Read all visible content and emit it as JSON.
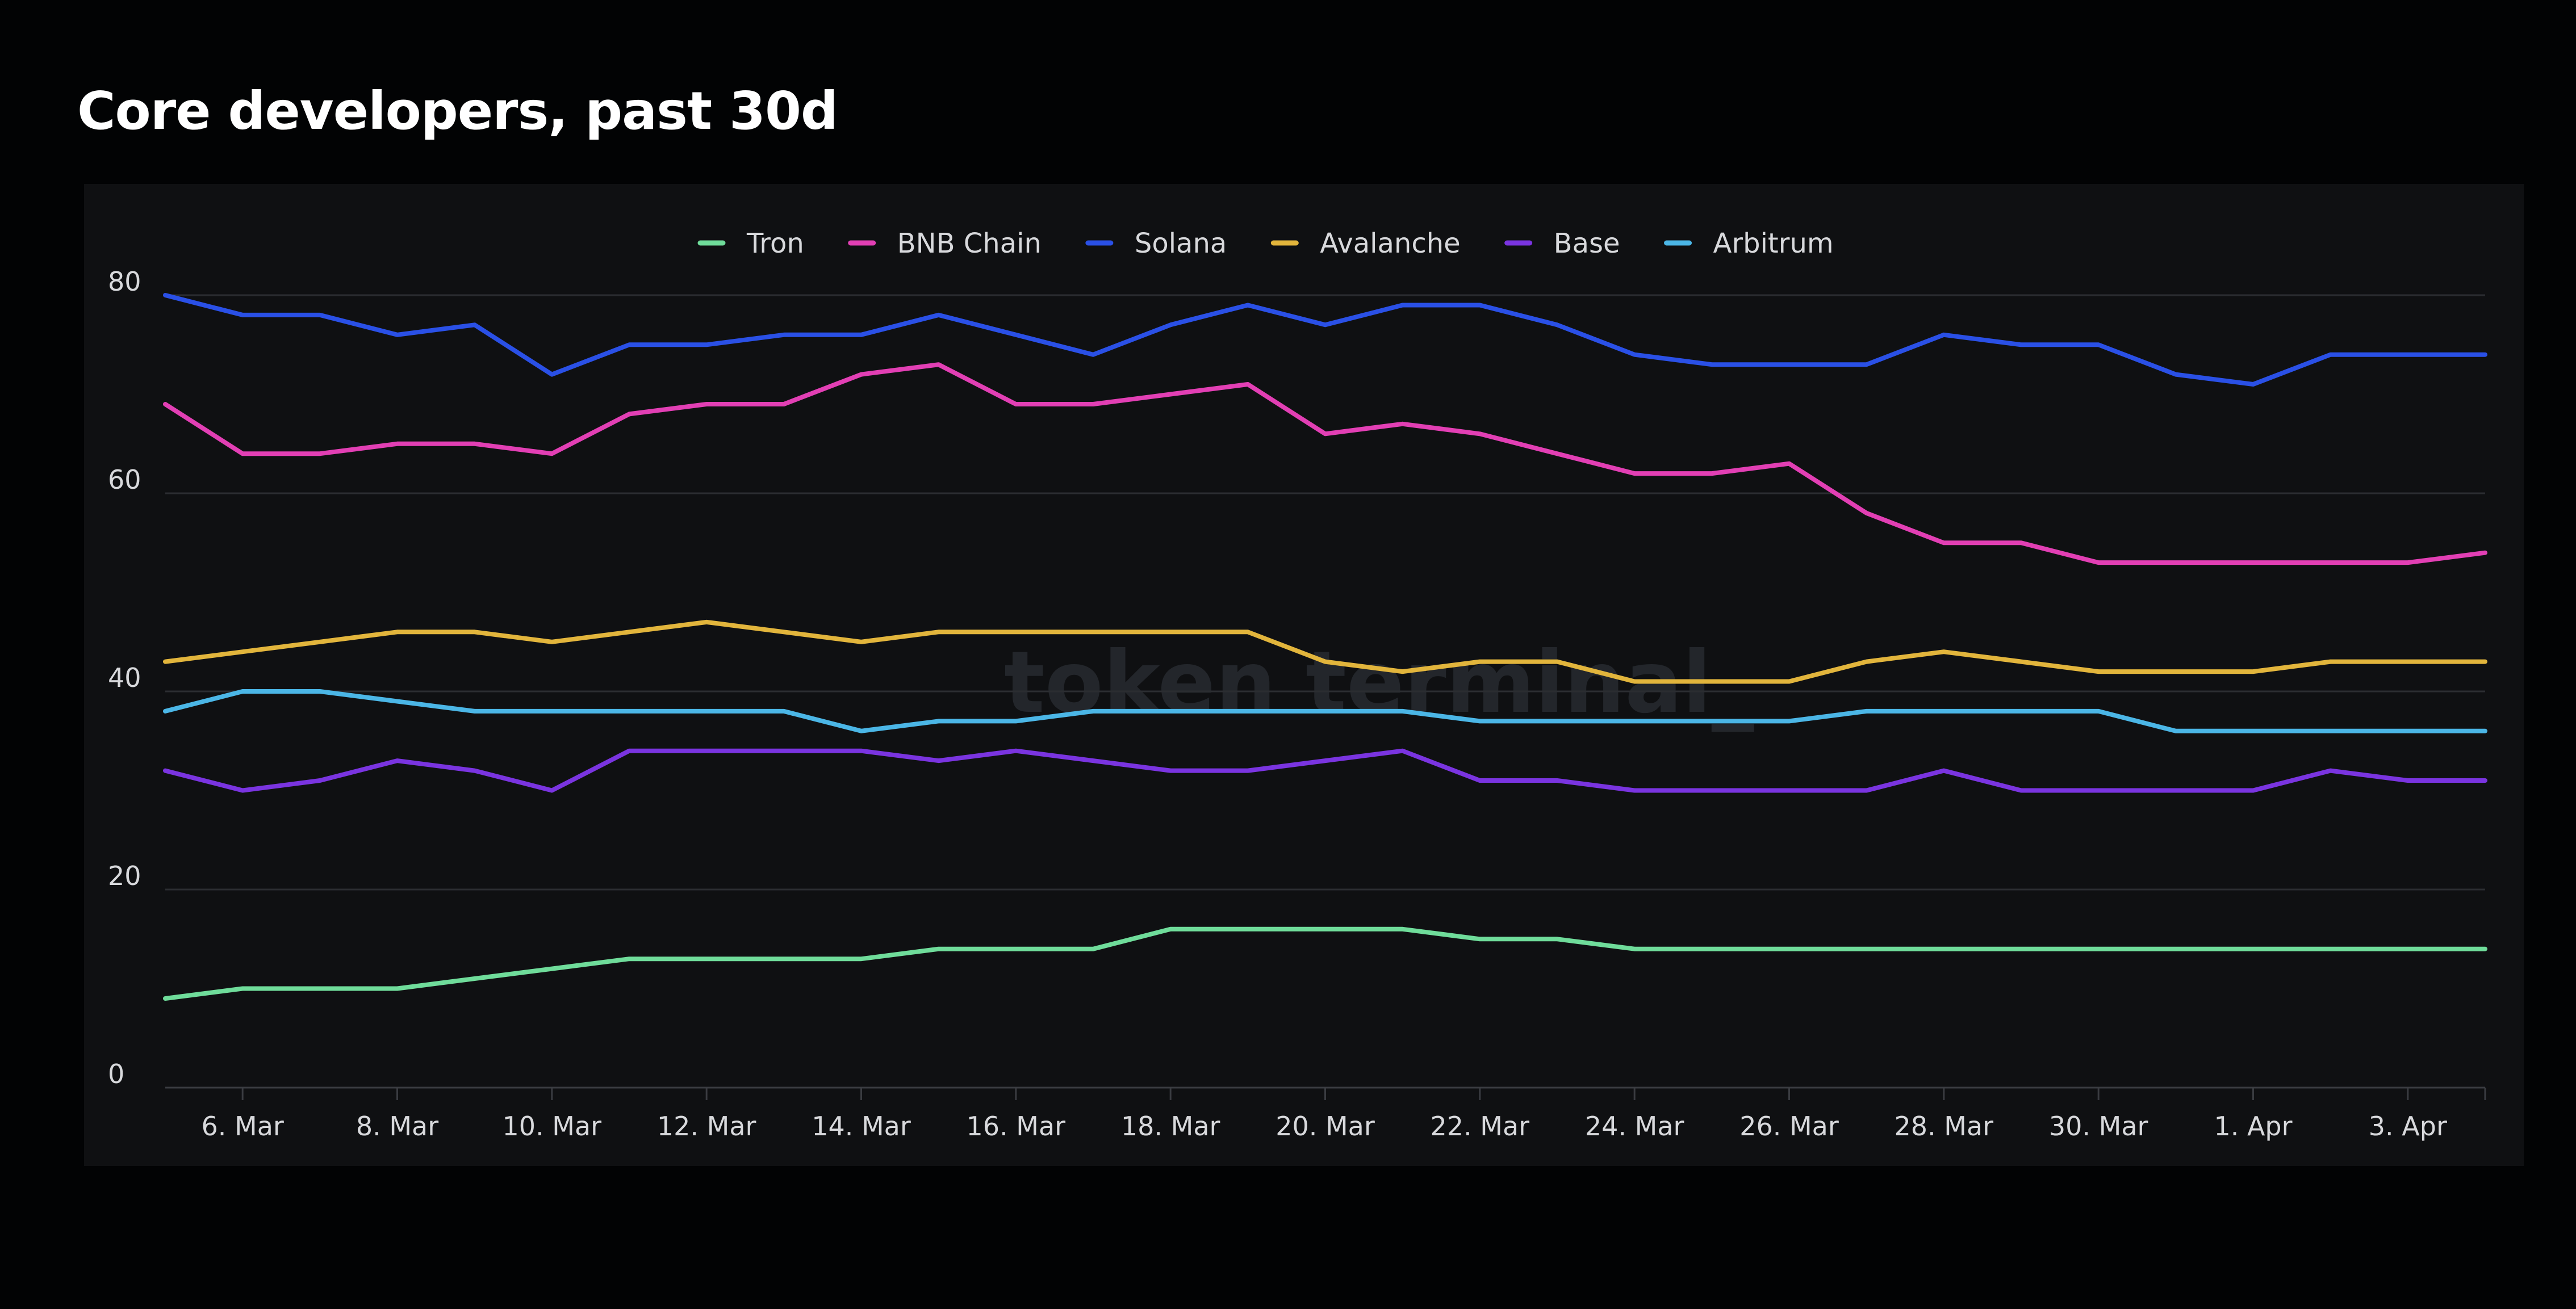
{
  "page_title": "Core developers, past 30d",
  "watermark": "token terminal_",
  "colors": {
    "background": "#020304",
    "panel": "#0f1012",
    "grid": "#2b2d31",
    "axis": "#3a3c41",
    "text": "#d8d9dc"
  },
  "chart_data": {
    "type": "line",
    "title": "Core developers, past 30d",
    "xlabel": "",
    "ylabel": "",
    "ylim": [
      0,
      80
    ],
    "yticks": [
      0,
      20,
      40,
      60,
      80
    ],
    "grid": true,
    "legend_position": "top-center",
    "x": [
      "5. Mar",
      "6. Mar",
      "7. Mar",
      "8. Mar",
      "9. Mar",
      "10. Mar",
      "11. Mar",
      "12. Mar",
      "13. Mar",
      "14. Mar",
      "15. Mar",
      "16. Mar",
      "17. Mar",
      "18. Mar",
      "19. Mar",
      "20. Mar",
      "21. Mar",
      "22. Mar",
      "23. Mar",
      "24. Mar",
      "25. Mar",
      "26. Mar",
      "27. Mar",
      "28. Mar",
      "29. Mar",
      "30. Mar",
      "31. Mar",
      "1. Apr",
      "2. Apr",
      "3. Apr",
      "4. Apr"
    ],
    "xtick_labels": [
      "6. Mar",
      "8. Mar",
      "10. Mar",
      "12. Mar",
      "14. Mar",
      "16. Mar",
      "18. Mar",
      "20. Mar",
      "22. Mar",
      "24. Mar",
      "26. Mar",
      "28. Mar",
      "30. Mar",
      "1. Apr",
      "3. Apr"
    ],
    "series": [
      {
        "name": "Tron",
        "color": "#6fdc9a",
        "values": [
          9,
          10,
          10,
          10,
          11,
          12,
          13,
          13,
          13,
          13,
          14,
          14,
          14,
          16,
          16,
          16,
          16,
          15,
          15,
          14,
          14,
          14,
          14,
          14,
          14,
          14,
          14,
          14,
          14,
          14,
          14
        ]
      },
      {
        "name": "BNB Chain",
        "color": "#e23fb4",
        "values": [
          69,
          64,
          64,
          65,
          65,
          64,
          68,
          69,
          69,
          72,
          73,
          69,
          69,
          70,
          71,
          66,
          67,
          66,
          64,
          62,
          62,
          63,
          58,
          55,
          55,
          53,
          53,
          53,
          53,
          53,
          54
        ]
      },
      {
        "name": "Solana",
        "color": "#2a50e6",
        "values": [
          80,
          78,
          78,
          76,
          77,
          72,
          75,
          75,
          76,
          76,
          78,
          76,
          74,
          77,
          79,
          77,
          79,
          79,
          77,
          74,
          73,
          73,
          73,
          76,
          75,
          75,
          72,
          71,
          74,
          74,
          74
        ]
      },
      {
        "name": "Avalanche",
        "color": "#e2b53c",
        "values": [
          43,
          44,
          45,
          46,
          46,
          45,
          46,
          47,
          46,
          45,
          46,
          46,
          46,
          46,
          46,
          43,
          42,
          43,
          43,
          41,
          41,
          41,
          43,
          44,
          43,
          42,
          42,
          42,
          43,
          43,
          43
        ]
      },
      {
        "name": "Base",
        "color": "#7a34e0",
        "values": [
          32,
          30,
          31,
          33,
          32,
          30,
          34,
          34,
          34,
          34,
          33,
          34,
          33,
          32,
          32,
          33,
          34,
          31,
          31,
          30,
          30,
          30,
          30,
          32,
          30,
          30,
          30,
          30,
          32,
          31,
          31
        ]
      },
      {
        "name": "Arbitrum",
        "color": "#4bb6e6",
        "values": [
          38,
          40,
          40,
          39,
          38,
          38,
          38,
          38,
          38,
          36,
          37,
          37,
          38,
          38,
          38,
          38,
          38,
          37,
          37,
          37,
          37,
          37,
          38,
          38,
          38,
          38,
          36,
          36,
          36,
          36,
          36
        ]
      }
    ]
  }
}
